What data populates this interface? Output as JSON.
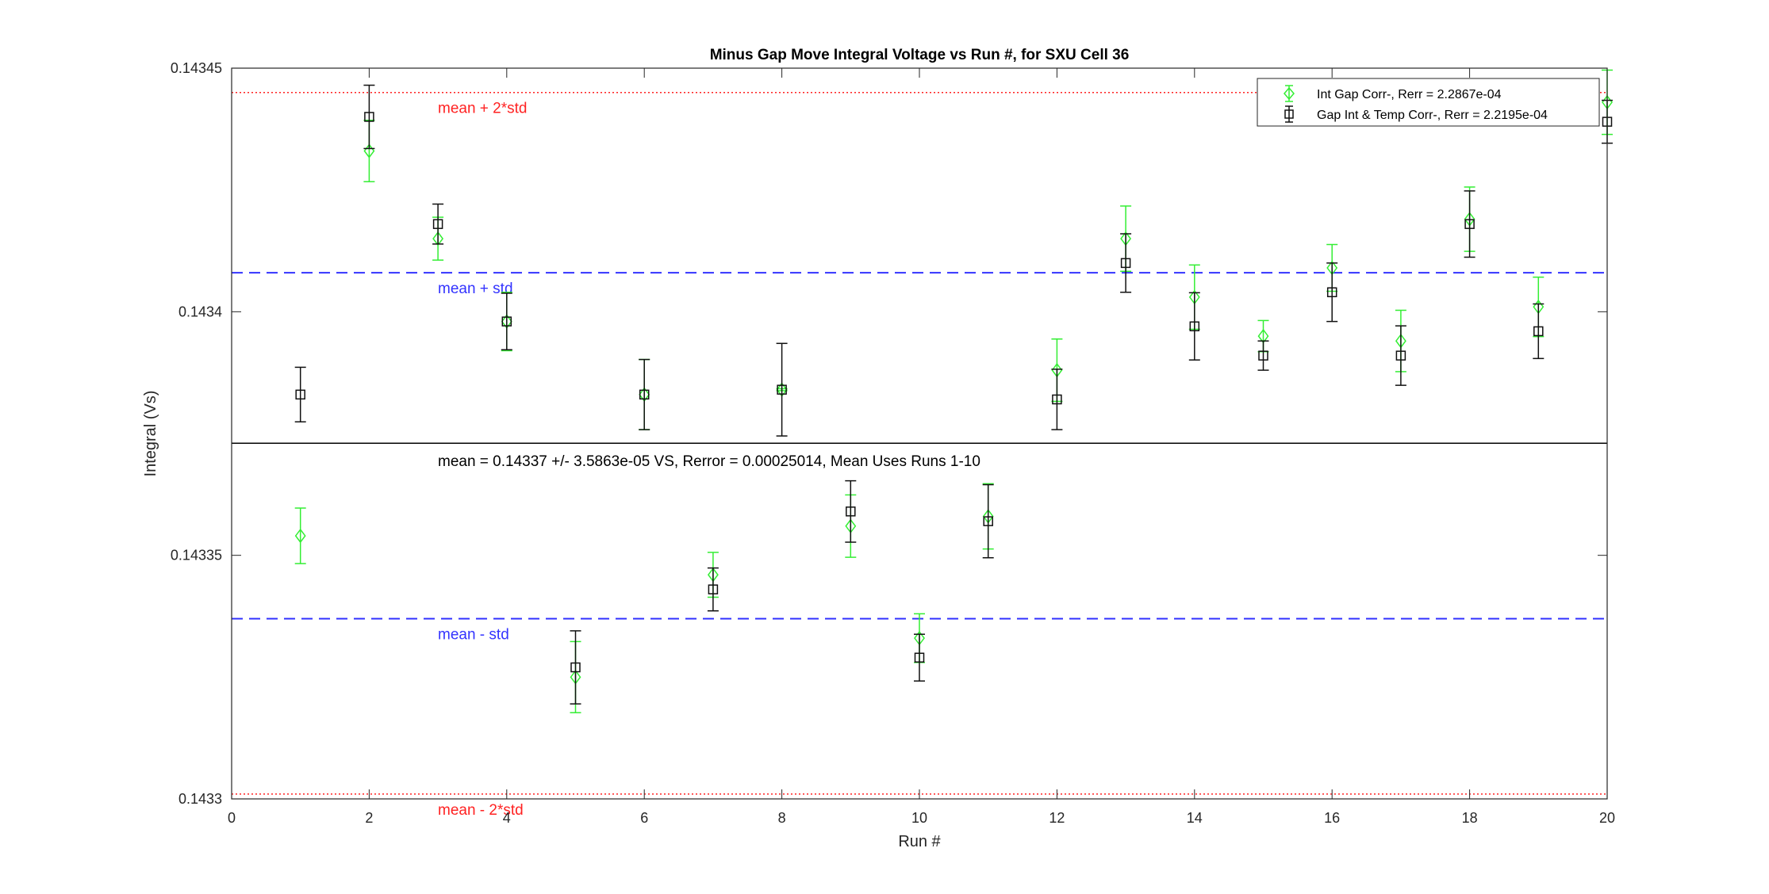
{
  "chart_data": {
    "type": "scatter",
    "title": "Minus Gap Move Integral Voltage vs Run #, for SXU Cell 36",
    "xlabel": "Run #",
    "ylabel": "Integral (Vs)",
    "xlim": [
      0,
      20
    ],
    "ylim": [
      0.1433,
      0.14345
    ],
    "x_ticks": [
      0,
      2,
      4,
      6,
      8,
      10,
      12,
      14,
      16,
      18,
      20
    ],
    "y_ticks": [
      0.1433,
      0.14335,
      0.1434,
      0.14345
    ],
    "y_tick_labels": [
      "0.1433",
      "0.14335",
      "0.1434",
      "0.14345"
    ],
    "legend_position": "top-right",
    "colors": {
      "series1": "#33ee33",
      "series2": "#111111",
      "std": "#3333ff",
      "two_std": "#ff2222"
    },
    "reference_lines": [
      {
        "label": "mean + 2*std",
        "y": 0.143445,
        "style": "dotted",
        "color": "#ff2222"
      },
      {
        "label": "mean + std",
        "y": 0.143408,
        "style": "dashed",
        "color": "#3333ff"
      },
      {
        "label": "",
        "y": 0.143373,
        "style": "solid",
        "color": "#000000"
      },
      {
        "label": "mean - std",
        "y": 0.143337,
        "style": "dashed",
        "color": "#3333ff"
      },
      {
        "label": "mean - 2*std",
        "y": 0.143301,
        "style": "dotted",
        "color": "#ff2222"
      }
    ],
    "annotation": "mean = 0.14337 +/- 3.5863e-05 VS, Rerror = 0.00025014, Mean Uses Runs 1-10",
    "series": [
      {
        "name": "Int Gap Corr-, Rerr = 2.2867e-04",
        "marker": "diamond",
        "x": [
          1,
          2,
          3,
          4,
          5,
          6,
          7,
          8,
          9,
          10,
          11,
          12,
          13,
          14,
          15,
          16,
          17,
          18,
          19,
          20
        ],
        "y": [
          0.143354,
          0.143433,
          0.143415,
          0.143398,
          0.143325,
          0.143383,
          0.143346,
          0.143384,
          0.143356,
          0.143333,
          0.143358,
          0.143388,
          0.143415,
          0.143403,
          0.143395,
          0.143409,
          0.143394,
          0.143419,
          0.143401,
          0.143443
        ],
        "err": [
          5.7e-06,
          6.3e-06,
          4.4e-06,
          6e-06,
          7.3e-06,
          7.2e-06,
          4.6e-06,
          2e-07,
          6.4e-06,
          5e-06,
          6.7e-06,
          6.4e-06,
          6.7e-06,
          6.6e-06,
          3.2e-06,
          4.8e-06,
          6.3e-06,
          6.6e-06,
          6.1e-06,
          6.6e-06
        ]
      },
      {
        "name": "Gap Int & Temp Corr-, Rerr = 2.2195e-04",
        "marker": "square",
        "x": [
          1,
          2,
          3,
          4,
          5,
          6,
          7,
          8,
          9,
          10,
          11,
          12,
          13,
          14,
          15,
          16,
          17,
          18,
          19,
          20
        ],
        "y": [
          0.143383,
          0.14344,
          0.143418,
          0.143398,
          0.143327,
          0.143383,
          0.143343,
          0.143384,
          0.143359,
          0.143329,
          0.143357,
          0.143382,
          0.14341,
          0.143397,
          0.143391,
          0.143404,
          0.143391,
          0.143418,
          0.143396,
          0.143439
        ],
        "err": [
          5.6e-06,
          6.5e-06,
          4.1e-06,
          5.8e-06,
          7.5e-06,
          7.2e-06,
          4.4e-06,
          9.5e-06,
          6.3e-06,
          4.8e-06,
          7.5e-06,
          6.2e-06,
          6e-06,
          6.9e-06,
          3e-06,
          6e-06,
          6.1e-06,
          6.8e-06,
          5.6e-06,
          4.4e-06
        ]
      }
    ]
  }
}
